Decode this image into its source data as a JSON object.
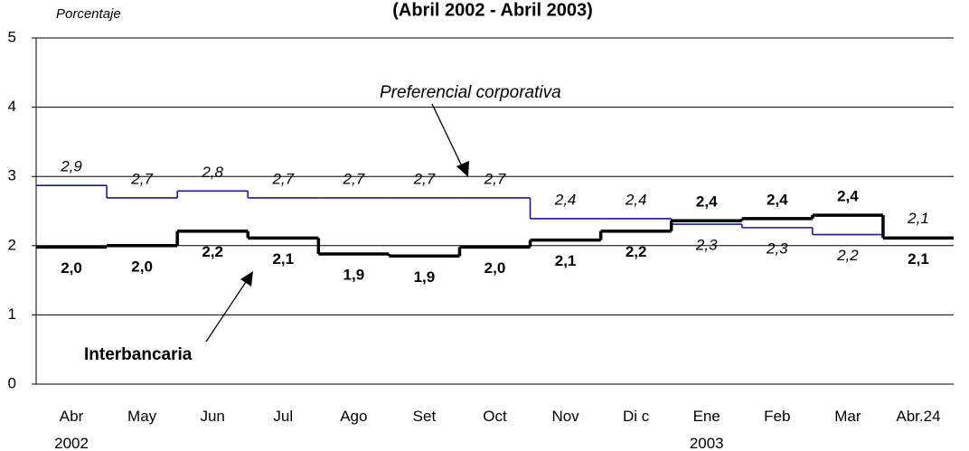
{
  "chart_data": {
    "type": "step-line",
    "title": "(Abril 2002 - Abril 2003)",
    "y_axis_label": "Porcentaje",
    "categories": [
      "Abr\n2002",
      "May",
      "Jun",
      "Jul",
      "Ago",
      "Set",
      "Oct",
      "Nov",
      "Di c",
      "Ene\n2003",
      "Feb",
      "Mar",
      "Abr.24"
    ],
    "ylim": [
      0,
      5
    ],
    "yticks": [
      0,
      1,
      2,
      3,
      4,
      5
    ],
    "grid": true,
    "series": [
      {
        "name": "Preferencial corporativa",
        "color": "#1a1a8c",
        "style": "italic",
        "values": [
          2.87,
          2.69,
          2.79,
          2.69,
          2.69,
          2.69,
          2.69,
          2.39,
          2.39,
          2.31,
          2.26,
          2.16,
          2.12
        ],
        "value_labels": [
          "2,9",
          "2,7",
          "2,8",
          "2,7",
          "2,7",
          "2,7",
          "2,7",
          "2,4",
          "2,4",
          "2,3",
          "2,3",
          "2,2",
          "2,1"
        ]
      },
      {
        "name": "Interbancaria",
        "color": "#000000",
        "style": "bold",
        "values": [
          1.98,
          2.0,
          2.21,
          2.11,
          1.88,
          1.85,
          1.98,
          2.08,
          2.21,
          2.36,
          2.39,
          2.44,
          2.11
        ],
        "value_labels": [
          "2,0",
          "2,0",
          "2,2",
          "2,1",
          "1,9",
          "1,9",
          "2,0",
          "2,1",
          "2,2",
          "2,4",
          "2,4",
          "2,4",
          "2,1"
        ]
      }
    ]
  }
}
